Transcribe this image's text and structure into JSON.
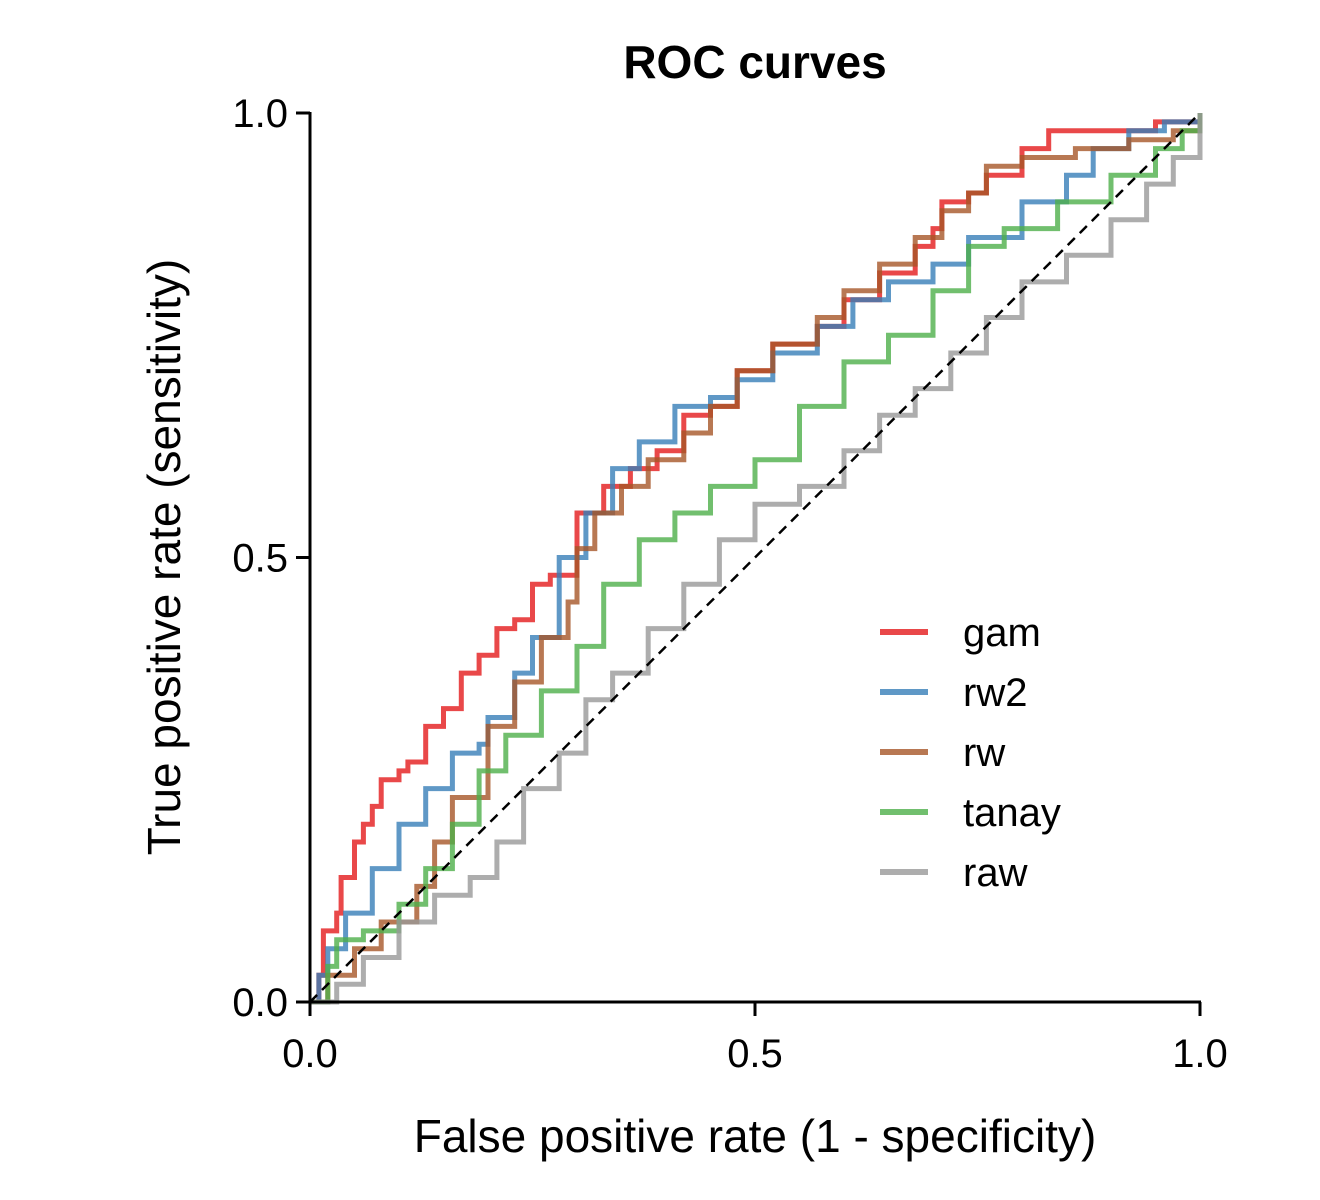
{
  "chart_data": {
    "type": "line",
    "title": "ROC curves",
    "xlabel": "False positive rate (1 - specificity)",
    "ylabel": "True positive rate (sensitivity)",
    "xlim": [
      0,
      1
    ],
    "ylim": [
      0,
      1
    ],
    "xticks": [
      "0.0",
      "0.5",
      "1.0"
    ],
    "yticks": [
      "0.0",
      "0.5",
      "1.0"
    ],
    "grid": false,
    "legend_position": "lower-right",
    "reference_line": {
      "style": "dashed",
      "color": "#000000",
      "points": [
        [
          0,
          0
        ],
        [
          1,
          1
        ]
      ]
    },
    "series": [
      {
        "name": "gam",
        "color": "#e41a1c",
        "points": [
          [
            0,
            0
          ],
          [
            0.01,
            0.03
          ],
          [
            0.015,
            0.08
          ],
          [
            0.03,
            0.1
          ],
          [
            0.035,
            0.14
          ],
          [
            0.05,
            0.18
          ],
          [
            0.06,
            0.2
          ],
          [
            0.07,
            0.22
          ],
          [
            0.08,
            0.25
          ],
          [
            0.1,
            0.26
          ],
          [
            0.11,
            0.27
          ],
          [
            0.13,
            0.31
          ],
          [
            0.15,
            0.33
          ],
          [
            0.17,
            0.37
          ],
          [
            0.19,
            0.39
          ],
          [
            0.21,
            0.42
          ],
          [
            0.23,
            0.43
          ],
          [
            0.25,
            0.47
          ],
          [
            0.27,
            0.48
          ],
          [
            0.3,
            0.55
          ],
          [
            0.33,
            0.58
          ],
          [
            0.36,
            0.6
          ],
          [
            0.39,
            0.62
          ],
          [
            0.42,
            0.66
          ],
          [
            0.45,
            0.67
          ],
          [
            0.48,
            0.71
          ],
          [
            0.52,
            0.74
          ],
          [
            0.57,
            0.76
          ],
          [
            0.6,
            0.79
          ],
          [
            0.64,
            0.82
          ],
          [
            0.68,
            0.85
          ],
          [
            0.7,
            0.87
          ],
          [
            0.71,
            0.9
          ],
          [
            0.74,
            0.91
          ],
          [
            0.76,
            0.93
          ],
          [
            0.8,
            0.96
          ],
          [
            0.83,
            0.98
          ],
          [
            0.9,
            0.98
          ],
          [
            0.95,
            0.99
          ],
          [
            1,
            1
          ]
        ]
      },
      {
        "name": "rw2",
        "color": "#377eb8",
        "points": [
          [
            0,
            0
          ],
          [
            0.01,
            0.03
          ],
          [
            0.02,
            0.06
          ],
          [
            0.04,
            0.1
          ],
          [
            0.07,
            0.15
          ],
          [
            0.1,
            0.2
          ],
          [
            0.13,
            0.24
          ],
          [
            0.16,
            0.28
          ],
          [
            0.19,
            0.29
          ],
          [
            0.2,
            0.32
          ],
          [
            0.23,
            0.37
          ],
          [
            0.25,
            0.41
          ],
          [
            0.28,
            0.5
          ],
          [
            0.31,
            0.55
          ],
          [
            0.34,
            0.6
          ],
          [
            0.37,
            0.63
          ],
          [
            0.41,
            0.67
          ],
          [
            0.45,
            0.68
          ],
          [
            0.48,
            0.7
          ],
          [
            0.52,
            0.73
          ],
          [
            0.57,
            0.76
          ],
          [
            0.61,
            0.79
          ],
          [
            0.65,
            0.81
          ],
          [
            0.7,
            0.83
          ],
          [
            0.74,
            0.86
          ],
          [
            0.8,
            0.9
          ],
          [
            0.85,
            0.93
          ],
          [
            0.88,
            0.96
          ],
          [
            0.92,
            0.98
          ],
          [
            0.96,
            0.99
          ],
          [
            1,
            1
          ]
        ]
      },
      {
        "name": "rw",
        "color": "#a65628",
        "points": [
          [
            0,
            0
          ],
          [
            0.02,
            0.03
          ],
          [
            0.05,
            0.06
          ],
          [
            0.08,
            0.09
          ],
          [
            0.12,
            0.13
          ],
          [
            0.14,
            0.18
          ],
          [
            0.16,
            0.23
          ],
          [
            0.2,
            0.31
          ],
          [
            0.23,
            0.36
          ],
          [
            0.26,
            0.41
          ],
          [
            0.29,
            0.45
          ],
          [
            0.3,
            0.51
          ],
          [
            0.32,
            0.55
          ],
          [
            0.35,
            0.58
          ],
          [
            0.38,
            0.61
          ],
          [
            0.42,
            0.64
          ],
          [
            0.45,
            0.67
          ],
          [
            0.48,
            0.71
          ],
          [
            0.52,
            0.74
          ],
          [
            0.57,
            0.77
          ],
          [
            0.6,
            0.8
          ],
          [
            0.64,
            0.83
          ],
          [
            0.68,
            0.86
          ],
          [
            0.71,
            0.89
          ],
          [
            0.74,
            0.91
          ],
          [
            0.76,
            0.94
          ],
          [
            0.8,
            0.95
          ],
          [
            0.86,
            0.96
          ],
          [
            0.92,
            0.97
          ],
          [
            0.97,
            0.98
          ],
          [
            1,
            1
          ]
        ]
      },
      {
        "name": "tanay",
        "color": "#4daf4a",
        "points": [
          [
            0,
            0
          ],
          [
            0.02,
            0.04
          ],
          [
            0.03,
            0.07
          ],
          [
            0.06,
            0.08
          ],
          [
            0.1,
            0.11
          ],
          [
            0.13,
            0.15
          ],
          [
            0.16,
            0.2
          ],
          [
            0.19,
            0.26
          ],
          [
            0.22,
            0.3
          ],
          [
            0.26,
            0.35
          ],
          [
            0.3,
            0.4
          ],
          [
            0.33,
            0.47
          ],
          [
            0.37,
            0.52
          ],
          [
            0.41,
            0.55
          ],
          [
            0.45,
            0.58
          ],
          [
            0.5,
            0.61
          ],
          [
            0.55,
            0.67
          ],
          [
            0.6,
            0.72
          ],
          [
            0.65,
            0.75
          ],
          [
            0.7,
            0.8
          ],
          [
            0.74,
            0.85
          ],
          [
            0.78,
            0.87
          ],
          [
            0.84,
            0.9
          ],
          [
            0.9,
            0.93
          ],
          [
            0.95,
            0.96
          ],
          [
            0.98,
            0.98
          ],
          [
            1,
            1
          ]
        ]
      },
      {
        "name": "raw",
        "color": "#999999",
        "points": [
          [
            0,
            0
          ],
          [
            0.03,
            0.02
          ],
          [
            0.06,
            0.05
          ],
          [
            0.1,
            0.09
          ],
          [
            0.14,
            0.12
          ],
          [
            0.18,
            0.14
          ],
          [
            0.21,
            0.18
          ],
          [
            0.24,
            0.24
          ],
          [
            0.28,
            0.28
          ],
          [
            0.31,
            0.34
          ],
          [
            0.34,
            0.37
          ],
          [
            0.38,
            0.42
          ],
          [
            0.42,
            0.47
          ],
          [
            0.46,
            0.52
          ],
          [
            0.5,
            0.56
          ],
          [
            0.55,
            0.58
          ],
          [
            0.6,
            0.62
          ],
          [
            0.64,
            0.66
          ],
          [
            0.68,
            0.69
          ],
          [
            0.72,
            0.73
          ],
          [
            0.76,
            0.77
          ],
          [
            0.8,
            0.81
          ],
          [
            0.85,
            0.84
          ],
          [
            0.9,
            0.88
          ],
          [
            0.94,
            0.92
          ],
          [
            0.97,
            0.95
          ],
          [
            1,
            1
          ]
        ]
      }
    ]
  }
}
